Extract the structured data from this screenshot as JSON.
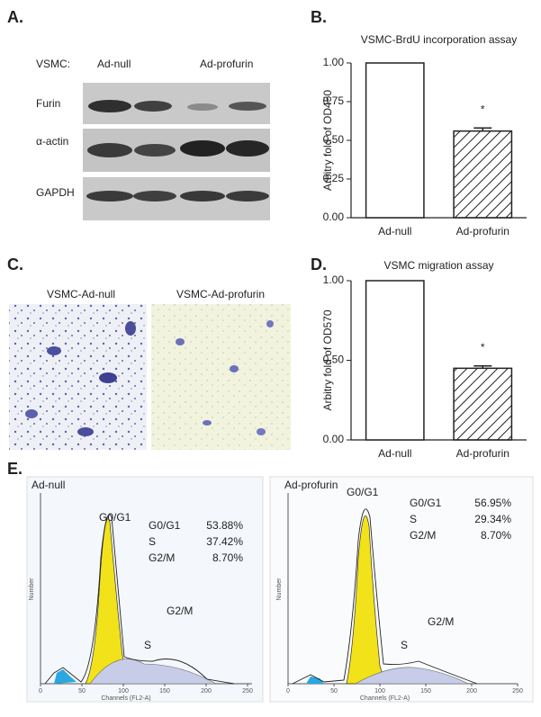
{
  "panel_labels": [
    "A.",
    "B.",
    "C.",
    "D.",
    "E."
  ],
  "blot": {
    "header_label": "VSMC:",
    "groups": [
      "Ad-null",
      "Ad-profurin"
    ],
    "rows": [
      "Furin",
      "α-actin",
      "GAPDH"
    ]
  },
  "chart_data": [
    {
      "type": "bar",
      "title": "VSMC-BrdU incorporation assay",
      "y_label": "Arbitry fold of OD450",
      "categories": [
        "Ad-null",
        "Ad-profurin"
      ],
      "values": [
        1.0,
        0.56
      ],
      "errors": [
        0,
        0.02
      ],
      "fills": [
        "plain",
        "hatch"
      ],
      "annotation": "*",
      "ylim": [
        0,
        1
      ],
      "yticks": [
        {
          "value": 0,
          "label": "0.00"
        },
        {
          "value": 0.25,
          "label": "0.25"
        },
        {
          "value": 0.5,
          "label": "0.50"
        },
        {
          "value": 0.75,
          "label": "0.75"
        },
        {
          "value": 1,
          "label": "1.00"
        }
      ]
    },
    {
      "type": "bar",
      "title": "VSMC migration assay",
      "y_label": "Arbitry fold of OD570",
      "categories": [
        "Ad-null",
        "Ad-profurin"
      ],
      "values": [
        1.0,
        0.45
      ],
      "errors": [
        0,
        0.015
      ],
      "fills": [
        "plain",
        "hatch"
      ],
      "annotation": "*",
      "ylim": [
        0,
        1
      ],
      "yticks": [
        {
          "value": 0,
          "label": "0.00"
        },
        {
          "value": 0.5,
          "label": "0.50"
        },
        {
          "value": 1,
          "label": "1.00"
        }
      ]
    }
  ],
  "micrographs": [
    "VSMC-Ad-null",
    "VSMC-Ad-profurin"
  ],
  "cell_cycle": [
    {
      "title": "Ad-null",
      "peak_labels": [
        "G0/G1",
        "S",
        "G2/M"
      ],
      "stats": [
        [
          "G0/G1",
          "53.88%"
        ],
        [
          "S",
          "37.42%"
        ],
        [
          "G2/M",
          "8.70%"
        ]
      ],
      "x_label": "Channels (FL2-A)",
      "y_label": "Number",
      "xlim": [
        0,
        250
      ],
      "xticks": [
        0,
        50,
        100,
        150,
        200,
        250
      ]
    },
    {
      "title": "Ad-profurin",
      "peak_labels": [
        "G0/G1",
        "S",
        "G2/M"
      ],
      "stats": [
        [
          "G0/G1",
          "56.95%"
        ],
        [
          "S",
          "29.34%"
        ],
        [
          "G2/M",
          "8.70%"
        ]
      ],
      "x_label": "Channels (FL2-A)",
      "y_label": "Number",
      "xlim": [
        0,
        250
      ],
      "xticks": [
        0,
        50,
        100,
        150,
        200,
        250
      ]
    }
  ]
}
